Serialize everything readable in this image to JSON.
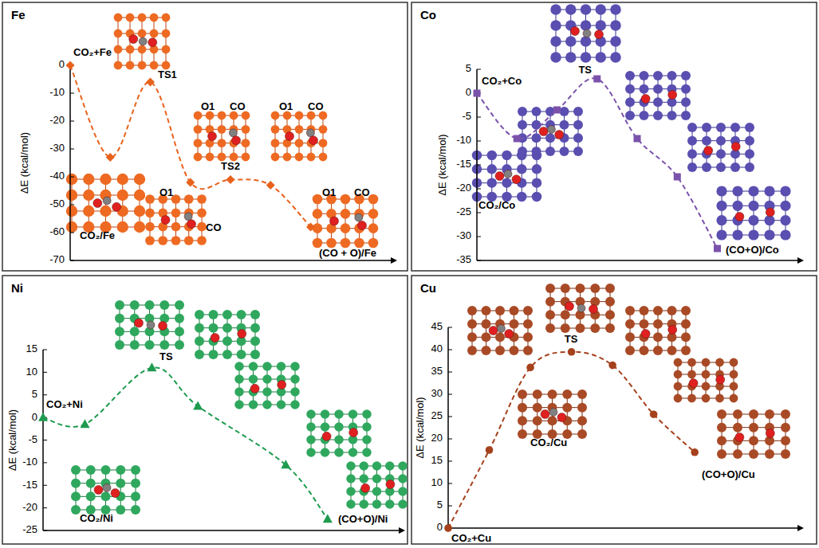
{
  "chart_data": [
    {
      "type": "line",
      "title": "Fe",
      "y_label": "ΔE (kcal/mol)",
      "x": [
        0,
        1,
        2,
        3,
        4,
        5,
        6
      ],
      "values": [
        0,
        -33,
        -6,
        -42,
        -41,
        -43,
        -58
      ],
      "xlim": [
        0,
        8
      ],
      "ylim": [
        -70,
        0
      ],
      "yticks": [
        -70,
        -60,
        -50,
        -40,
        -30,
        -20,
        -10,
        0
      ],
      "color": "#e8621c",
      "marker": "diamond",
      "line_style": "dashed",
      "grid": false,
      "tick_labels": "y",
      "annotations": [
        "CO₂+Fe",
        "TS1",
        "CO₂/Fe",
        "O1",
        "CO",
        "TS2",
        "O1",
        "CO",
        "O1",
        "CO",
        "O1",
        "CO",
        "(CO + O)/Fe"
      ]
    },
    {
      "type": "line",
      "title": "Co",
      "y_label": "ΔE (kcal/mol)",
      "x": [
        0,
        1,
        2,
        3,
        4,
        5,
        6
      ],
      "values": [
        0,
        -9.5,
        -3.5,
        3,
        -9.5,
        -17.5,
        -32.5
      ],
      "xlim": [
        0,
        8
      ],
      "ylim": [
        -35,
        5
      ],
      "yticks": [
        -35,
        -30,
        -25,
        -20,
        -15,
        -10,
        -5,
        0,
        5
      ],
      "color": "#7b52ab",
      "marker": "square",
      "line_style": "dashed",
      "grid": false,
      "tick_labels": "y",
      "annotations": [
        "CO₂+Co",
        "TS",
        "CO₂/Co",
        "(CO+O)/Co"
      ]
    },
    {
      "type": "line",
      "title": "Ni",
      "y_label": "ΔE (kcal/mol)",
      "x": [
        0,
        1,
        2.6,
        3.7,
        5.8,
        6.8
      ],
      "values": [
        0,
        -1.5,
        11,
        2.5,
        -10.5,
        -22.5
      ],
      "xlim": [
        0,
        8.5
      ],
      "ylim": [
        -25,
        15
      ],
      "yticks": [
        -25,
        -20,
        -15,
        -10,
        -5,
        0,
        5,
        10,
        15
      ],
      "color": "#1e9b4f",
      "marker": "triangle",
      "line_style": "dashed",
      "grid": false,
      "tick_labels": "y",
      "annotations": [
        "CO₂+Ni",
        "TS",
        "CO₂/Ni",
        "(CO+O)/Ni"
      ]
    },
    {
      "type": "line",
      "title": "Cu",
      "y_label": "ΔE (kcal/mol)",
      "x": [
        0,
        1,
        2,
        3,
        4,
        5,
        6
      ],
      "values": [
        0,
        17.5,
        36,
        39.5,
        36.5,
        25.5,
        17
      ],
      "xlim": [
        0,
        8.5
      ],
      "ylim": [
        0,
        45
      ],
      "yticks": [
        0,
        5,
        10,
        15,
        20,
        25,
        30,
        35,
        40,
        45
      ],
      "color": "#a5411c",
      "marker": "circle",
      "line_style": "dashed",
      "grid": false,
      "tick_labels": "y",
      "annotations": [
        "CO₂+Cu",
        "TS",
        "CO₂/Cu",
        "(CO+O)/Cu"
      ]
    }
  ]
}
